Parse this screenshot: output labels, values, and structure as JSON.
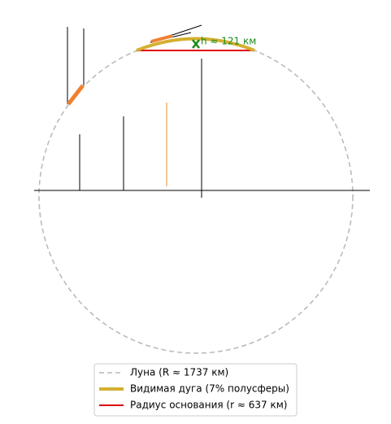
{
  "annotation": "h ≈ 121 км",
  "legend": {
    "items": [
      {
        "label": "Луна (R ≈ 1737 км)"
      },
      {
        "label": "Видимая дуга (7% полусферы)"
      },
      {
        "label": "Радиус основания (r ≈ 637 км)"
      }
    ]
  }
}
